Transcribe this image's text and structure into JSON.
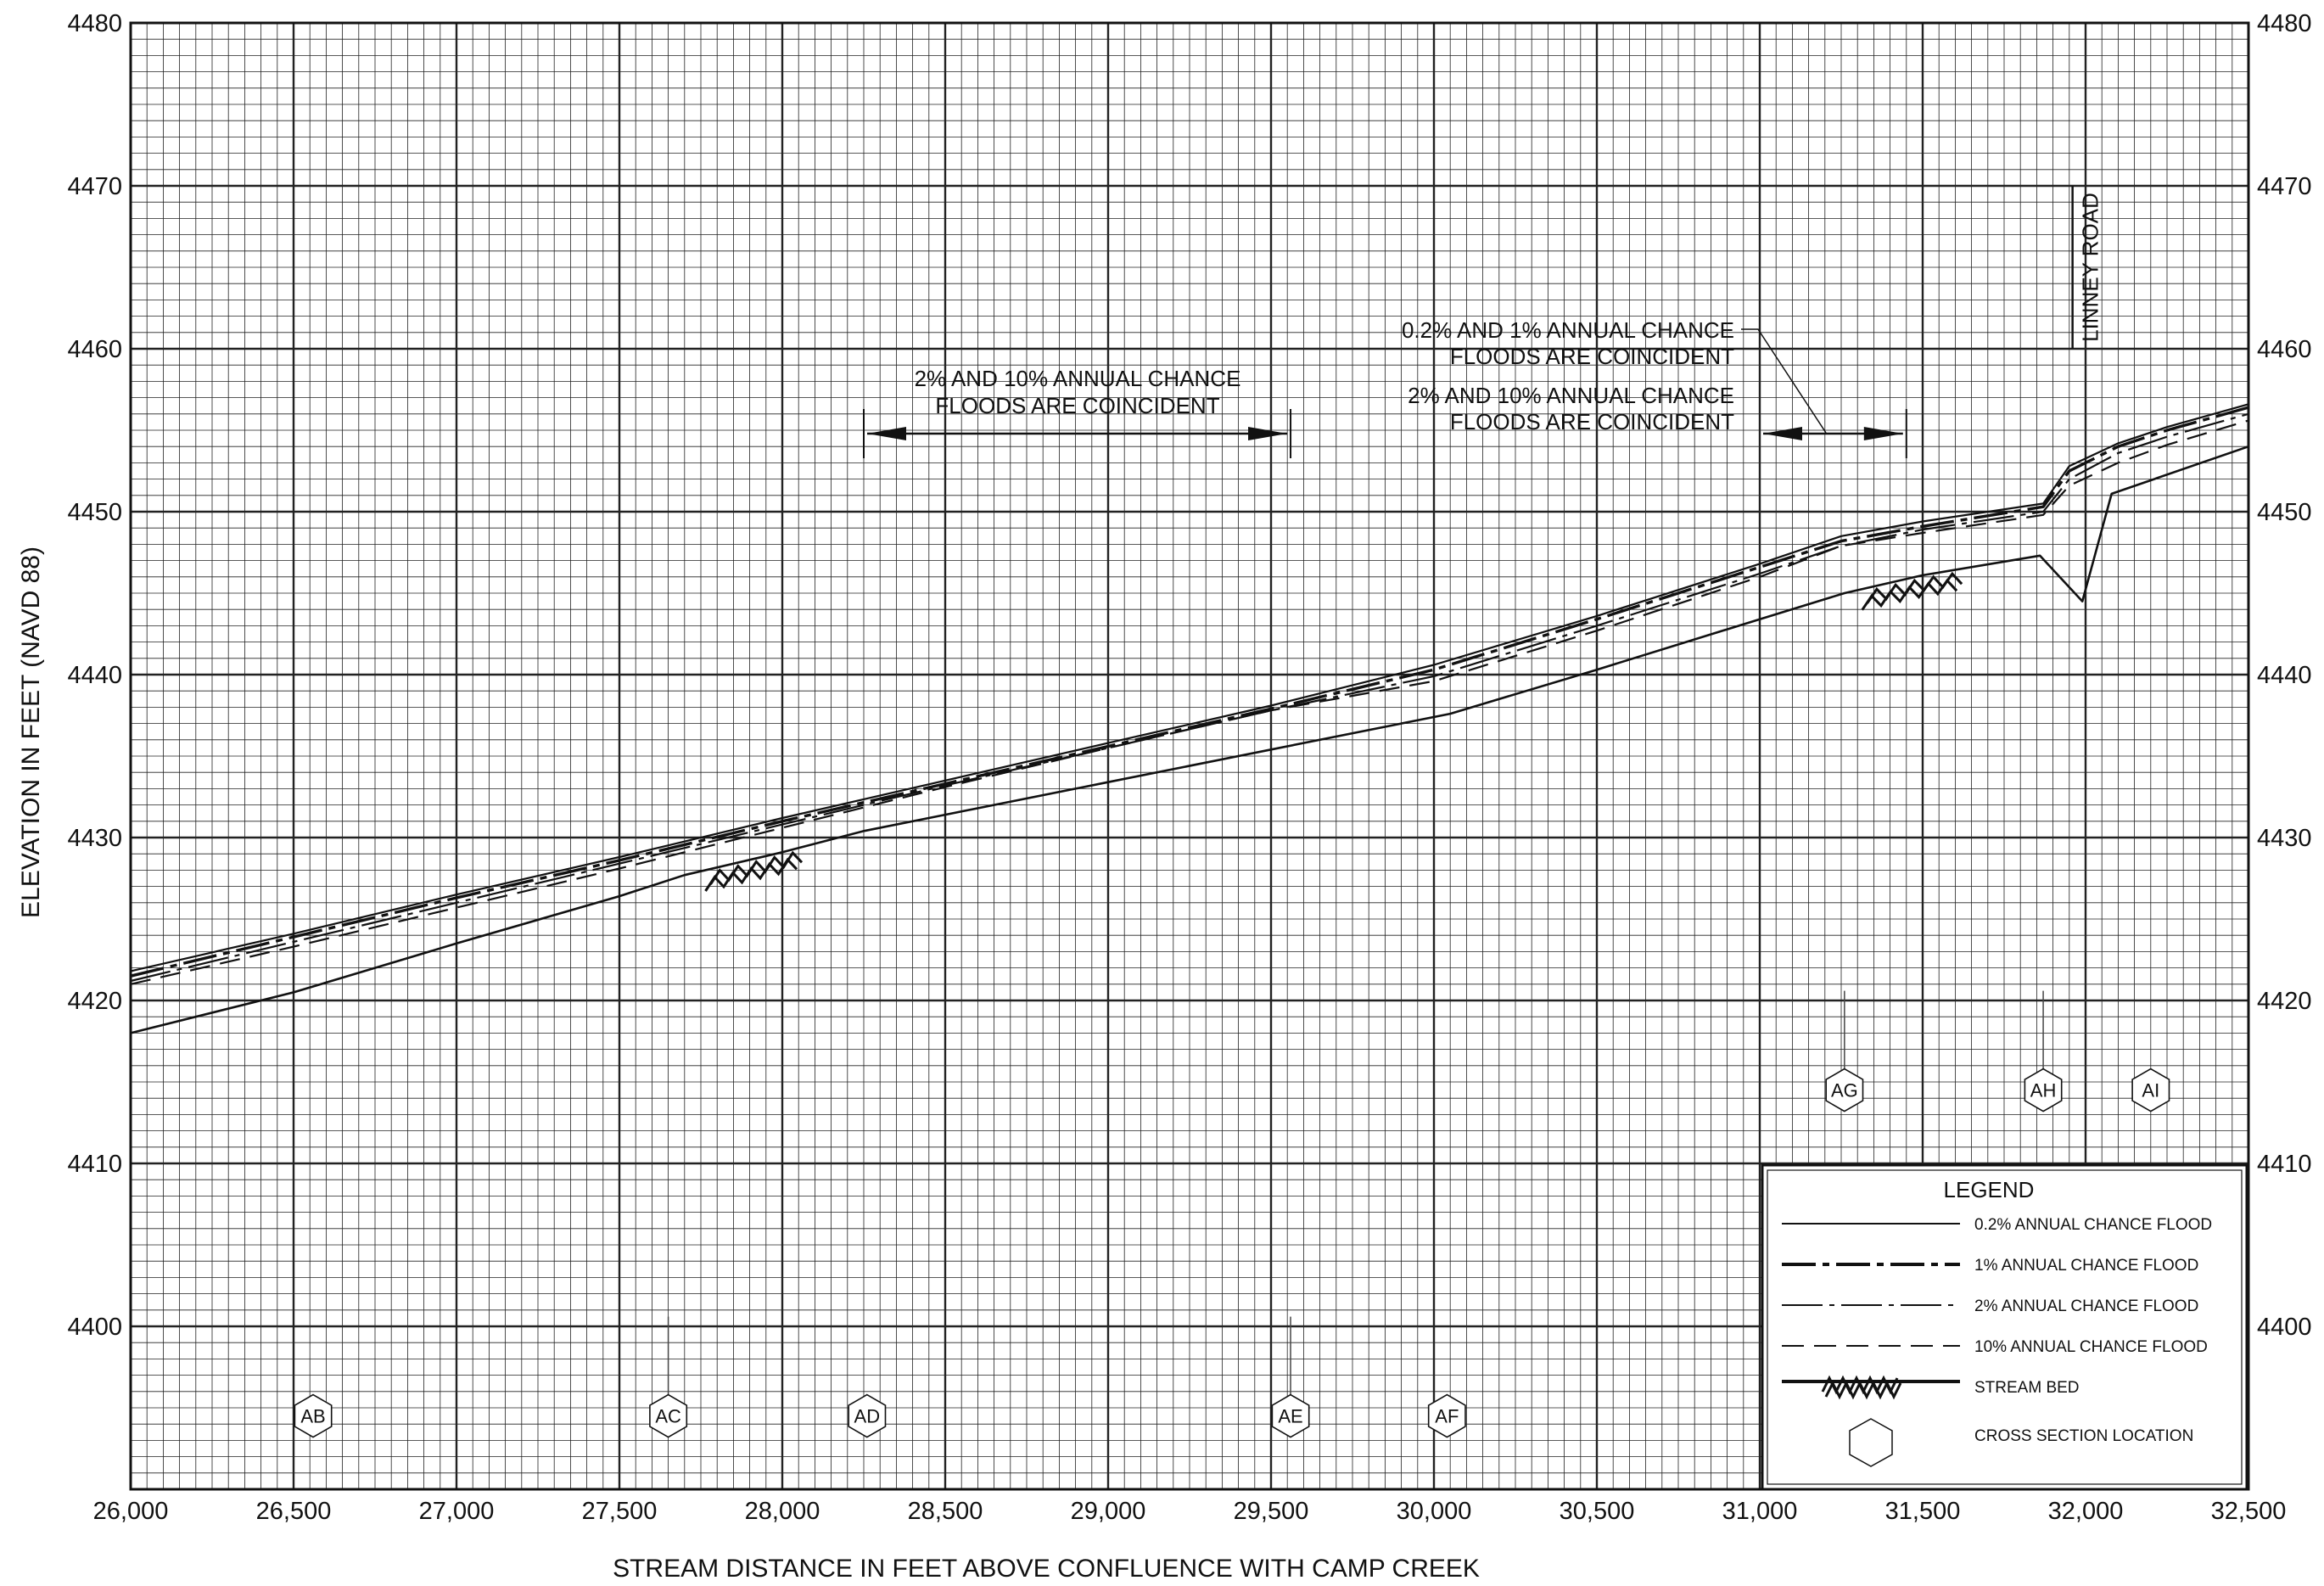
{
  "chart_data": {
    "type": "line",
    "xlabel": "STREAM DISTANCE IN FEET ABOVE CONFLUENCE WITH CAMP CREEK",
    "ylabel": "ELEVATION IN FEET (NAVD 88)",
    "xlim": [
      26000,
      32500
    ],
    "ylim": [
      4390,
      4480
    ],
    "x_ticks": [
      26000,
      26500,
      27000,
      27500,
      28000,
      28500,
      29000,
      29500,
      30000,
      30500,
      31000,
      31500,
      32000,
      32500
    ],
    "x_tick_labels": [
      "26,000",
      "26,500",
      "27,000",
      "27,500",
      "28,000",
      "28,500",
      "29,000",
      "29,500",
      "30,000",
      "30,500",
      "31,000",
      "31,500",
      "32,000",
      "32,500"
    ],
    "y_ticks": [
      4400,
      4410,
      4420,
      4430,
      4440,
      4450,
      4460,
      4470,
      4480
    ],
    "y_tick_labels": [
      "4400",
      "4410",
      "4420",
      "4430",
      "4440",
      "4450",
      "4460",
      "4470",
      "4480"
    ],
    "grid": true,
    "legend_position": "bottom-right",
    "legend": {
      "title": "LEGEND",
      "items": [
        {
          "label": "0.2% ANNUAL CHANCE FLOOD",
          "style": "solid-thin"
        },
        {
          "label": "1% ANNUAL CHANCE FLOOD",
          "style": "dash-dot-thick"
        },
        {
          "label": "2% ANNUAL CHANCE FLOOD",
          "style": "dash-dot-thin"
        },
        {
          "label": "10% ANNUAL CHANCE FLOOD",
          "style": "dashed"
        },
        {
          "label": "STREAM BED",
          "style": "hatched"
        },
        {
          "label": "CROSS SECTION LOCATION",
          "style": "hexagon"
        }
      ]
    },
    "series": [
      {
        "name": "0.2% ANNUAL CHANCE FLOOD",
        "x": [
          26000,
          26500,
          27000,
          27500,
          28000,
          28500,
          29000,
          29500,
          30000,
          30500,
          31000,
          31250,
          31500,
          31870,
          31950,
          32100,
          32250,
          32500
        ],
        "y": [
          4421.8,
          4424.1,
          4426.5,
          4428.8,
          4431.2,
          4433.5,
          4435.8,
          4438.1,
          4440.6,
          4443.6,
          4446.8,
          4448.5,
          4449.4,
          4450.5,
          4452.8,
          4454.2,
          4455.2,
          4456.6
        ]
      },
      {
        "name": "1% ANNUAL CHANCE FLOOD",
        "x": [
          26000,
          26500,
          27000,
          27500,
          28000,
          28500,
          29000,
          29500,
          30000,
          30500,
          31000,
          31250,
          31500,
          31870,
          31950,
          32100,
          32250,
          32500
        ],
        "y": [
          4421.5,
          4423.9,
          4426.3,
          4428.6,
          4431.0,
          4433.3,
          4435.6,
          4437.9,
          4440.3,
          4443.4,
          4446.6,
          4448.2,
          4449.1,
          4450.3,
          4452.5,
          4454.0,
          4455.0,
          4456.4
        ]
      },
      {
        "name": "2% ANNUAL CHANCE FLOOD",
        "x": [
          26000,
          26500,
          27000,
          27500,
          28000,
          28500,
          29000,
          29500,
          30000,
          30500,
          31000,
          31250,
          31500,
          31870,
          31950,
          32100,
          32250,
          32500
        ],
        "y": [
          4421.2,
          4423.6,
          4426.0,
          4428.4,
          4430.8,
          4433.2,
          4435.5,
          4437.8,
          4439.9,
          4443.0,
          4446.2,
          4447.9,
          4448.9,
          4450.0,
          4452.0,
          4453.6,
          4454.6,
          4456.0
        ]
      },
      {
        "name": "10% ANNUAL CHANCE FLOOD",
        "x": [
          26000,
          26500,
          27000,
          27500,
          28000,
          28500,
          29000,
          29500,
          30000,
          30500,
          31000,
          31250,
          31500,
          31870,
          31950,
          32100,
          32250,
          32500
        ],
        "y": [
          4421.0,
          4423.3,
          4425.7,
          4428.1,
          4430.6,
          4433.1,
          4435.5,
          4437.8,
          4439.6,
          4442.7,
          4446.0,
          4447.9,
          4448.7,
          4449.8,
          4451.6,
          4453.0,
          4454.1,
          4455.6
        ]
      },
      {
        "name": "STREAM BED",
        "x": [
          26000,
          26500,
          27000,
          27500,
          27700,
          28000,
          28250,
          28500,
          29000,
          29500,
          30050,
          30500,
          31000,
          31260,
          31500,
          31860,
          31990,
          32080,
          32500
        ],
        "y": [
          4418.0,
          4420.5,
          4423.5,
          4426.4,
          4427.7,
          4429.1,
          4430.4,
          4431.4,
          4433.4,
          4435.4,
          4437.6,
          4440.3,
          4443.4,
          4445.0,
          4446.1,
          4447.3,
          4444.5,
          4451.1,
          4454.0
        ]
      }
    ],
    "stream_bed_hatches": [
      {
        "x_start": 27780,
        "x_end": 28060
      },
      {
        "x_start": 31330,
        "x_end": 31620
      }
    ],
    "cross_sections": [
      {
        "label": "AB",
        "x": 26560,
        "y": 4394.5,
        "leader": false
      },
      {
        "label": "AC",
        "x": 27650,
        "y": 4394.5,
        "leader": true
      },
      {
        "label": "AD",
        "x": 28260,
        "y": 4394.5,
        "leader": false
      },
      {
        "label": "AE",
        "x": 29560,
        "y": 4394.5,
        "leader": true
      },
      {
        "label": "AF",
        "x": 30040,
        "y": 4394.5,
        "leader": false
      },
      {
        "label": "AG",
        "x": 31260,
        "y": 4414.5,
        "leader": true
      },
      {
        "label": "AH",
        "x": 31870,
        "y": 4414.5,
        "leader": true
      },
      {
        "label": "AI",
        "x": 32200,
        "y": 4414.5,
        "leader": false
      }
    ],
    "road": {
      "label": "LINNEY ROAD",
      "x": 31960,
      "y_from": 4460,
      "y_to": 4470
    },
    "annotations": [
      {
        "lines": [
          "2% AND 10% ANNUAL CHANCE",
          "FLOODS ARE COINCIDENT"
        ],
        "span": [
          28250,
          29560
        ]
      },
      {
        "lines": [
          "0.2% AND 1% ANNUAL CHANCE",
          "FLOODS ARE COINCIDENT",
          "2% AND 10% ANNUAL CHANCE",
          "FLOODS ARE COINCIDENT"
        ],
        "span": [
          31000,
          31450
        ]
      }
    ]
  }
}
